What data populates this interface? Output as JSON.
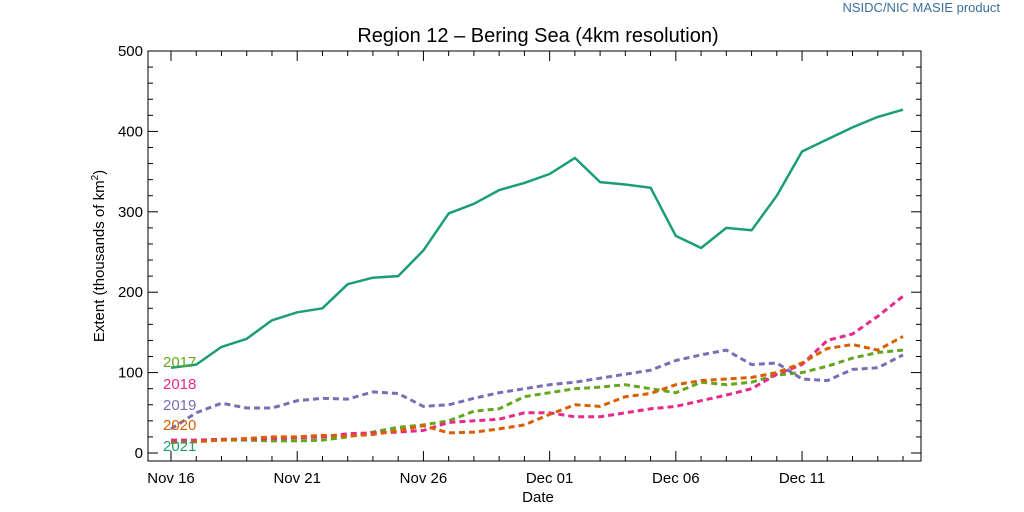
{
  "product_label": "NSIDC/NIC MASIE product",
  "chart_data": {
    "type": "line",
    "title": "Region 12 – Bering Sea (4km resolution)",
    "xlabel": "Date",
    "ylabel_main": "Extent (thousands of km",
    "ylabel_sup": "2",
    "ylabel_close": ")",
    "ylim": [
      0,
      500
    ],
    "yticks": [
      0,
      100,
      200,
      300,
      400,
      500
    ],
    "ytick_labels": [
      "0",
      "100",
      "200",
      "300",
      "400",
      "500"
    ],
    "xlim": [
      0,
      30
    ],
    "xticks": [
      0,
      5,
      10,
      15,
      20,
      25
    ],
    "xtick_labels": [
      "Nov 16",
      "Nov 21",
      "Nov 26",
      "Dec 01",
      "Dec 06",
      "Dec 11"
    ],
    "x": [
      0,
      1,
      2,
      3,
      4,
      5,
      6,
      7,
      8,
      9,
      10,
      11,
      12,
      13,
      14,
      15,
      16,
      17,
      18,
      19,
      20,
      21,
      22,
      23,
      24,
      25,
      26,
      27,
      28,
      29
    ],
    "series": [
      {
        "name": "2017",
        "color": "#66a61e",
        "style": "dashed",
        "values": [
          15,
          15,
          16,
          16,
          15,
          15,
          16,
          20,
          26,
          32,
          35,
          40,
          52,
          55,
          70,
          75,
          80,
          82,
          85,
          80,
          75,
          88,
          85,
          88,
          97,
          100,
          108,
          118,
          125,
          128
        ]
      },
      {
        "name": "2018",
        "color": "#e7298a",
        "style": "dashed",
        "values": [
          16,
          16,
          17,
          17,
          18,
          19,
          20,
          24,
          25,
          26,
          28,
          38,
          40,
          42,
          50,
          50,
          45,
          45,
          50,
          55,
          58,
          65,
          72,
          80,
          98,
          110,
          140,
          148,
          170,
          195
        ]
      },
      {
        "name": "2019",
        "color": "#7570b3",
        "style": "dashed",
        "values": [
          30,
          50,
          62,
          56,
          56,
          65,
          68,
          67,
          76,
          74,
          58,
          60,
          68,
          75,
          80,
          85,
          88,
          93,
          98,
          103,
          115,
          122,
          128,
          110,
          112,
          92,
          90,
          104,
          106,
          122
        ]
      },
      {
        "name": "2020",
        "color": "#d95f02",
        "style": "dashed",
        "values": [
          13,
          14,
          16,
          18,
          20,
          20,
          22,
          21,
          23,
          28,
          34,
          25,
          26,
          30,
          35,
          48,
          60,
          58,
          70,
          74,
          85,
          90,
          92,
          94,
          100,
          112,
          130,
          135,
          128,
          145
        ]
      },
      {
        "name": "2021",
        "color": "#1b9e77",
        "style": "solid",
        "values": [
          106,
          110,
          132,
          142,
          165,
          175,
          180,
          210,
          218,
          220,
          252,
          298,
          310,
          327,
          336,
          347,
          367,
          337,
          334,
          330,
          270,
          255,
          280,
          277,
          320,
          375,
          390,
          405,
          418,
          427
        ]
      }
    ]
  }
}
